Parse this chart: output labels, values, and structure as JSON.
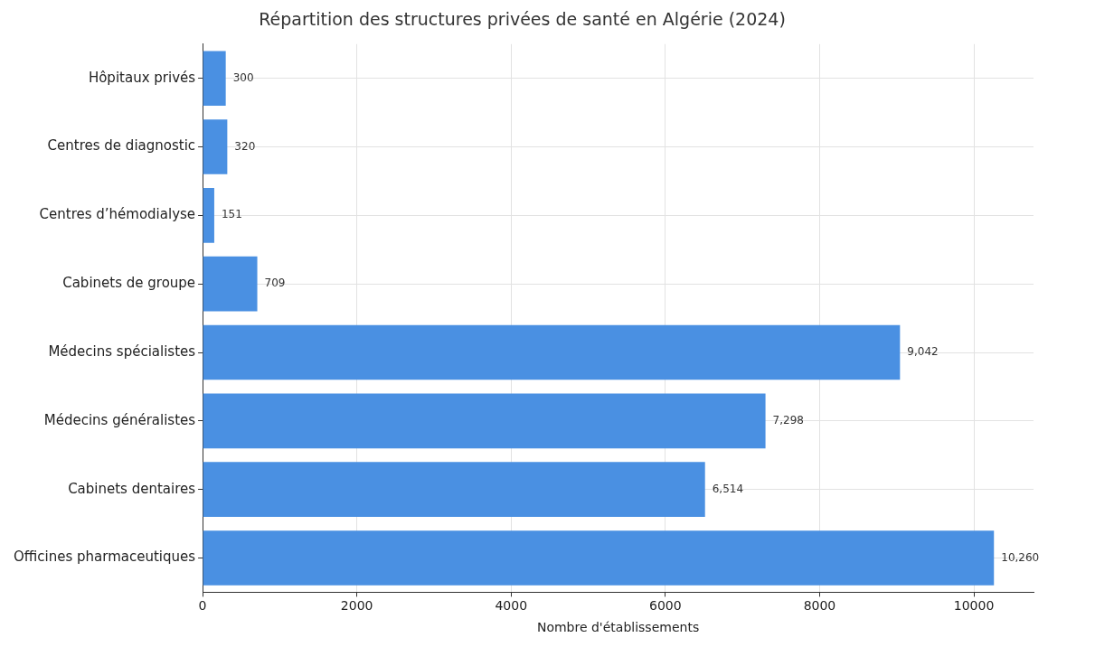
{
  "chart_data": {
    "type": "bar",
    "orientation": "horizontal",
    "title": "Répartition des structures privées de santé en Algérie (2024)",
    "xlabel": "Nombre d'établissements",
    "categories": [
      "Hôpitaux privés",
      "Centres de diagnostic",
      "Centres d’hémodialyse",
      "Cabinets de groupe",
      "Médecins spécialistes",
      "Médecins généralistes",
      "Cabinets dentaires",
      "Officines pharmaceutiques"
    ],
    "values": [
      300,
      320,
      151,
      709,
      9042,
      7298,
      6514,
      10260
    ],
    "value_labels": [
      "300",
      "320",
      "151",
      "709",
      "9,042",
      "7,298",
      "6,514",
      "10,260"
    ],
    "color": "#4a90e2",
    "xlim": [
      0,
      10773
    ],
    "xticks": [
      0,
      2000,
      4000,
      6000,
      8000,
      10000
    ],
    "grid": true
  }
}
